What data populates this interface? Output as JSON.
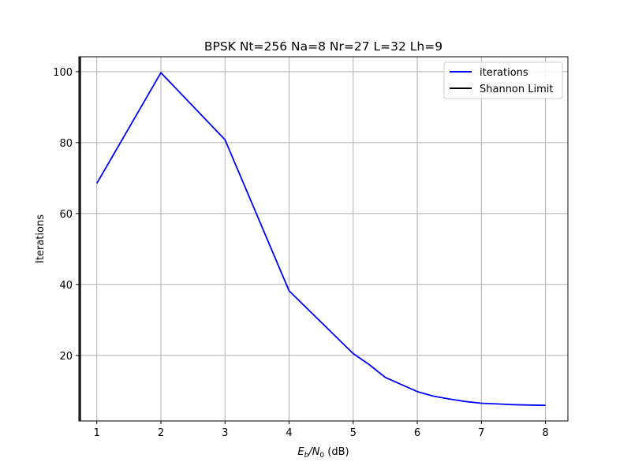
{
  "chart_data": {
    "type": "line",
    "title": "BPSK Nt=256 Na=8 Nr=27 L=32 Lh=9",
    "xlabel_parts": {
      "e": "E",
      "b": "b",
      "slash_n": "/N",
      "zero": "0",
      "unit": " (dB)"
    },
    "ylabel": "Iterations",
    "xlim": [
      0.72,
      8.35
    ],
    "ylim": [
      1.5,
      104.2
    ],
    "xticks": [
      1,
      2,
      3,
      4,
      5,
      6,
      7,
      8
    ],
    "xtick_labels": [
      "1",
      "2",
      "3",
      "4",
      "5",
      "6",
      "7",
      "8"
    ],
    "yticks": [
      20,
      40,
      60,
      80,
      100
    ],
    "ytick_labels": [
      "20",
      "40",
      "60",
      "80",
      "100"
    ],
    "grid": true,
    "legend_position": "top-right",
    "series": [
      {
        "name": "iterations",
        "color": "#0000ff",
        "x": [
          1,
          2,
          3,
          4,
          5,
          5.25,
          5.5,
          5.75,
          6,
          6.25,
          6.5,
          6.75,
          7,
          7.25,
          7.5,
          7.75,
          8
        ],
        "y": [
          68.5,
          99.7,
          80.8,
          38.2,
          20.5,
          17.4,
          13.8,
          11.8,
          9.8,
          8.5,
          7.7,
          7.0,
          6.5,
          6.3,
          6.1,
          6.0,
          5.9
        ]
      },
      {
        "name": "Shannon Limit",
        "color": "#000000",
        "vertical_line_x": 0.74
      }
    ]
  }
}
